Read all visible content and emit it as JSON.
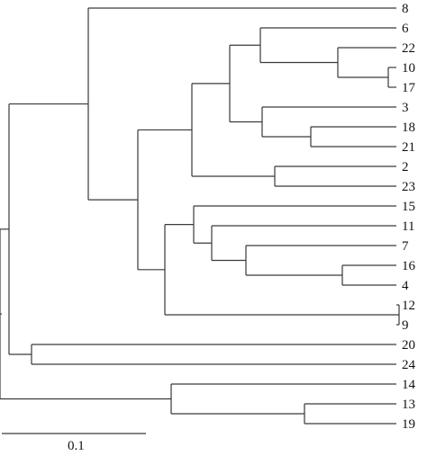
{
  "tree": {
    "leaves": [
      "8",
      "6",
      "22",
      "10",
      "17",
      "3",
      "18",
      "21",
      "2",
      "23",
      "15",
      "11",
      "7",
      "16",
      "4",
      "12",
      "9",
      "20",
      "24",
      "14",
      "13",
      "19"
    ]
  },
  "scale_bar": {
    "label": "0.1"
  }
}
